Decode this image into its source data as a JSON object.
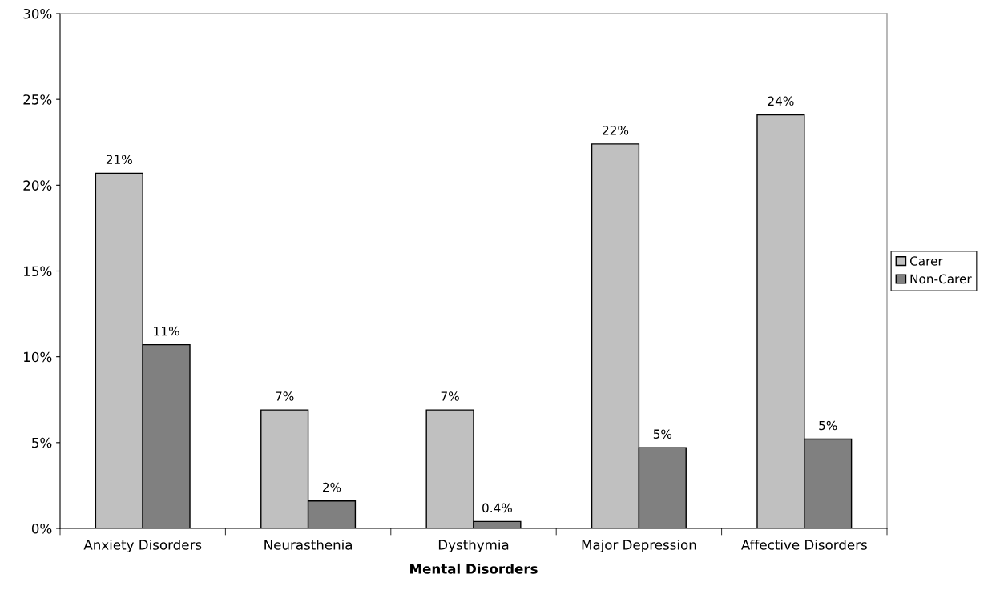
{
  "chart_data": {
    "type": "bar",
    "xlabel": "Mental Disorders",
    "categories": [
      "Anxiety Disorders",
      "Neurasthenia",
      "Dysthymia",
      "Major Depression",
      "Affective Disorders"
    ],
    "series": [
      {
        "name": "Carer",
        "color": "#c0c0c0",
        "values": [
          20.7,
          6.9,
          6.9,
          22.4,
          24.1
        ],
        "value_labels": [
          "21%",
          "7%",
          "7%",
          "22%",
          "24%"
        ]
      },
      {
        "name": "Non-Carer",
        "color": "#808080",
        "values": [
          10.7,
          1.6,
          0.4,
          4.7,
          5.2
        ],
        "value_labels": [
          "11%",
          "2%",
          "0.4%",
          "5%",
          "5%"
        ]
      }
    ],
    "ylim": [
      0,
      30
    ],
    "yticks": [
      {
        "value": 0,
        "label": "0%"
      },
      {
        "value": 5,
        "label": "5%"
      },
      {
        "value": 10,
        "label": "10%"
      },
      {
        "value": 15,
        "label": "15%"
      },
      {
        "value": 20,
        "label": "20%"
      },
      {
        "value": 25,
        "label": "25%"
      },
      {
        "value": 30,
        "label": "30%"
      }
    ],
    "grid": false,
    "legend": "right"
  }
}
